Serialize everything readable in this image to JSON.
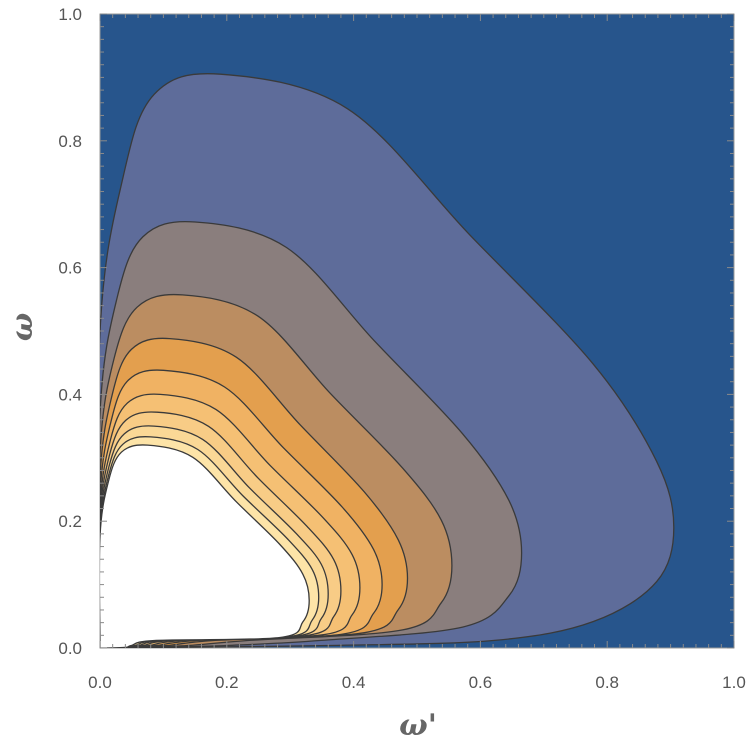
{
  "chart_data": {
    "type": "contour",
    "title": "",
    "xlabel": "ω'",
    "ylabel": "ω",
    "xlim": [
      0.0,
      1.0
    ],
    "ylim": [
      0.0,
      1.0
    ],
    "grid": false,
    "legend": "none",
    "x_ticks": [
      "0.0",
      "0.2",
      "0.4",
      "0.6",
      "0.8",
      "1.0"
    ],
    "y_ticks": [
      "0.0",
      "0.2",
      "0.4",
      "0.6",
      "0.8",
      "1.0"
    ],
    "background_color": "#27558c",
    "contour_line_color": "#3a3a3a",
    "contours": [
      {
        "level": 1,
        "fill": "#5e6c9a",
        "x_max": 0.905,
        "y_max": 0.905,
        "x_at_peak": 0.19,
        "y_at_right": 0.19,
        "base_start": 0.4,
        "base_end": 0.55
      },
      {
        "level": 2,
        "fill": "#8a7e7d",
        "x_max": 0.665,
        "y_max": 0.672,
        "x_at_peak": 0.15,
        "y_at_right": 0.15,
        "base_start": 0.3,
        "base_end": 0.42
      },
      {
        "level": 3,
        "fill": "#bb8d61",
        "x_max": 0.555,
        "y_max": 0.557,
        "x_at_peak": 0.13,
        "y_at_right": 0.13,
        "base_start": 0.25,
        "base_end": 0.34
      },
      {
        "level": 4,
        "fill": "#e39f4e",
        "x_max": 0.485,
        "y_max": 0.488,
        "x_at_peak": 0.11,
        "y_at_right": 0.11,
        "base_start": 0.22,
        "base_end": 0.3
      },
      {
        "level": 5,
        "fill": "#f0b263",
        "x_max": 0.445,
        "y_max": 0.438,
        "x_at_peak": 0.1,
        "y_at_right": 0.1,
        "base_start": 0.2,
        "base_end": 0.28
      },
      {
        "level": 6,
        "fill": "#f5c074",
        "x_max": 0.41,
        "y_max": 0.4,
        "x_at_peak": 0.095,
        "y_at_right": 0.095,
        "base_start": 0.19,
        "base_end": 0.26
      },
      {
        "level": 7,
        "fill": "#f8cc86",
        "x_max": 0.38,
        "y_max": 0.372,
        "x_at_peak": 0.09,
        "y_at_right": 0.09,
        "base_start": 0.18,
        "base_end": 0.245
      },
      {
        "level": 8,
        "fill": "#fad896",
        "x_max": 0.36,
        "y_max": 0.35,
        "x_at_peak": 0.085,
        "y_at_right": 0.085,
        "base_start": 0.17,
        "base_end": 0.235
      },
      {
        "level": 9,
        "fill": "#fde4a8",
        "x_max": 0.345,
        "y_max": 0.333,
        "x_at_peak": 0.08,
        "y_at_right": 0.08,
        "base_start": 0.16,
        "base_end": 0.225
      },
      {
        "level": 10,
        "fill": "#ffffff",
        "x_max": 0.33,
        "y_max": 0.32,
        "x_at_peak": 0.075,
        "y_at_right": 0.075,
        "base_start": 0.15,
        "base_end": 0.215
      }
    ]
  }
}
